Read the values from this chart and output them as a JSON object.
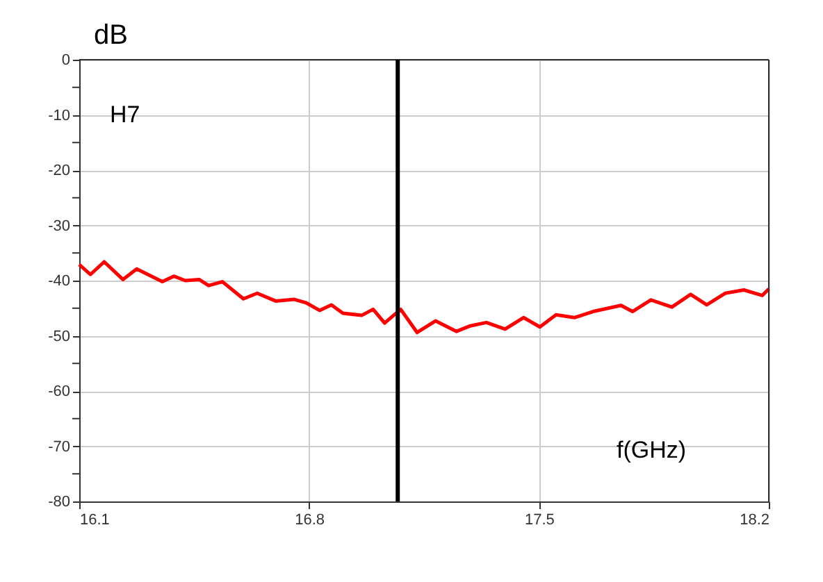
{
  "chart_data": {
    "type": "line",
    "ylabel": "dB",
    "xlabel": "f(GHz)",
    "annotations": [
      "H7"
    ],
    "x": [
      16.1,
      16.134,
      16.176,
      16.233,
      16.275,
      16.353,
      16.388,
      16.423,
      16.465,
      16.494,
      16.536,
      16.6,
      16.642,
      16.698,
      16.755,
      16.79,
      16.832,
      16.868,
      16.903,
      16.96,
      16.995,
      17.03,
      17.079,
      17.129,
      17.185,
      17.249,
      17.291,
      17.34,
      17.397,
      17.453,
      17.503,
      17.552,
      17.608,
      17.665,
      17.75,
      17.785,
      17.841,
      17.905,
      17.962,
      18.011,
      18.067,
      18.124,
      18.18,
      18.2
    ],
    "series": [
      {
        "color": "#ff0000",
        "values": [
          -37.1,
          -38.9,
          -36.6,
          -39.8,
          -37.9,
          -40.2,
          -39.2,
          -40.0,
          -39.8,
          -40.9,
          -40.2,
          -43.3,
          -42.3,
          -43.7,
          -43.4,
          -44.0,
          -45.4,
          -44.4,
          -45.9,
          -46.3,
          -45.2,
          -47.7,
          -45.2,
          -49.4,
          -47.3,
          -49.2,
          -48.2,
          -47.6,
          -48.8,
          -46.7,
          -48.4,
          -46.2,
          -46.7,
          -45.6,
          -44.5,
          -45.6,
          -43.5,
          -44.8,
          -42.5,
          -44.4,
          -42.3,
          -41.7,
          -42.7,
          -41.5
        ]
      }
    ],
    "xlim": [
      16.1,
      18.2
    ],
    "xticks": [
      16.1,
      16.8,
      17.5,
      18.2
    ],
    "ylim": [
      -80,
      0
    ],
    "yticks": [
      0,
      {
        "value": -5,
        "label": null
      },
      -10,
      {
        "value": -15,
        "label": null
      },
      -20,
      {
        "value": -25,
        "label": null
      },
      -30,
      {
        "value": -35,
        "label": null
      },
      -40,
      {
        "value": -45,
        "label": null
      },
      -50,
      {
        "value": -55,
        "label": null
      },
      -60,
      {
        "value": -65,
        "label": null
      },
      -70,
      {
        "value": -75,
        "label": null
      },
      -80
    ],
    "ref_lines": [
      {
        "axis": "x",
        "value": 17.07,
        "color": "#000000"
      }
    ],
    "grid": true,
    "marker": "none",
    "line_style": "solid"
  }
}
